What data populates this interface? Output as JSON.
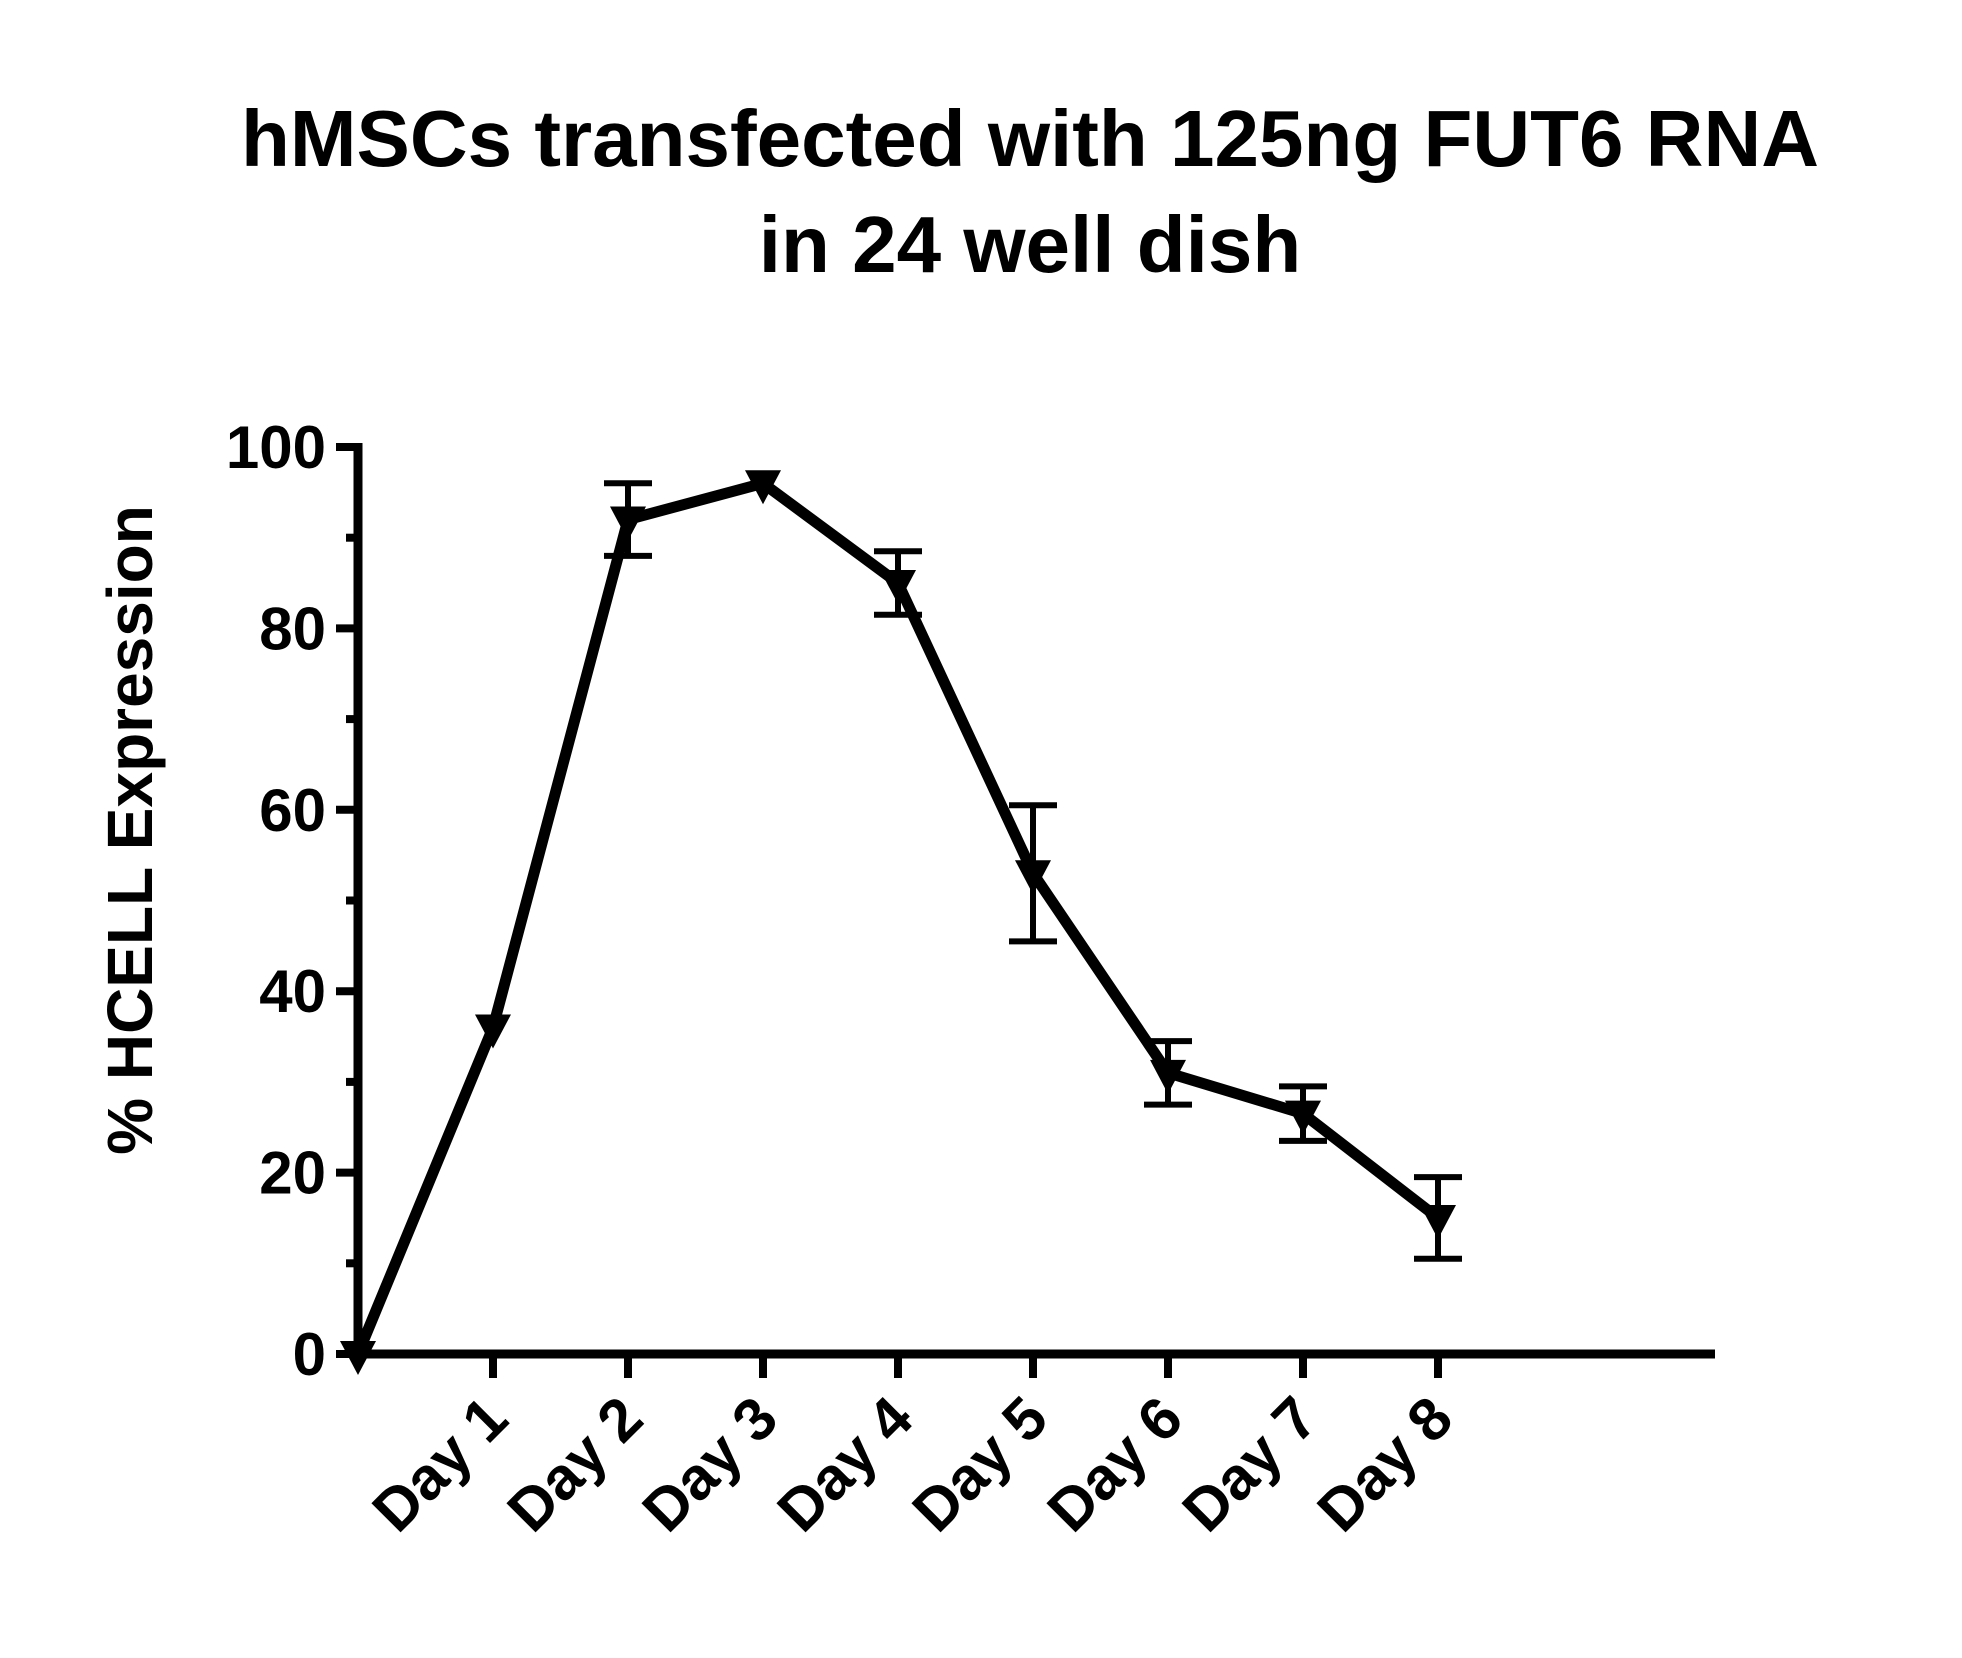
{
  "chart_data": {
    "type": "line",
    "title_lines": [
      "hMSCs transfected with 125ng FUT6 RNA",
      "in 24 well dish"
    ],
    "xlabel": "",
    "ylabel": "% HCELL Expression",
    "ylim": [
      0,
      100
    ],
    "y_ticks": [
      "0",
      "20",
      "40",
      "60",
      "80",
      "100"
    ],
    "categories": [
      "",
      "Day 1",
      "Day 2",
      "Day 3",
      "Day 4",
      "Day 5",
      "Day 6",
      "Day 7",
      "Day 8"
    ],
    "series": [
      {
        "values": [
          0,
          36,
          92,
          96,
          85,
          53,
          31,
          26.5,
          15
        ],
        "errors": [
          0,
          0,
          4,
          0,
          3.5,
          7.5,
          3.5,
          3,
          4.5
        ],
        "marker": "triangle-down",
        "color": "#000000"
      }
    ],
    "grid": false,
    "legend": "none"
  }
}
